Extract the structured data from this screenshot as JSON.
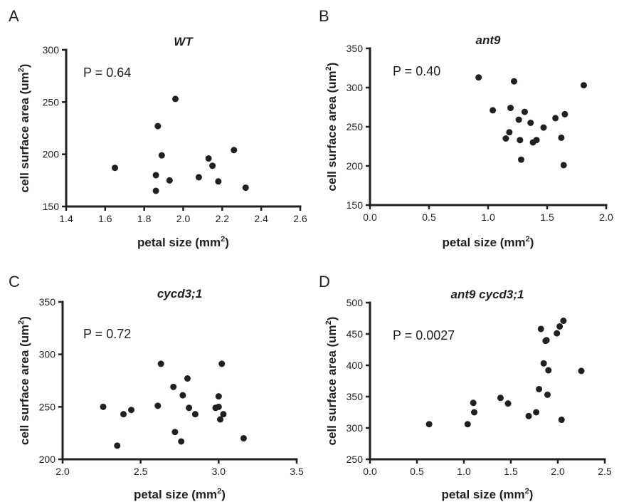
{
  "chart_data": [
    {
      "type": "scatter",
      "panel": "A",
      "title": "WT",
      "annotation": "P = 0.64",
      "xlabel": "petal size (mm",
      "xlabel_sup": "2",
      "xlabel_end": ")",
      "ylabel": "cell surface area (um",
      "ylabel_sup": "2",
      "ylabel_end": ")",
      "xlim": [
        1.4,
        2.6
      ],
      "ylim": [
        150,
        300
      ],
      "xticks": [
        1.4,
        1.6,
        1.8,
        2.0,
        2.2,
        2.4,
        2.6
      ],
      "xtick_labels": [
        "1.4",
        "1.6",
        "1.8",
        "2.0",
        "2.2",
        "2.4",
        "2.6"
      ],
      "yticks": [
        150,
        200,
        250,
        300
      ],
      "ytick_labels": [
        "150",
        "200",
        "250",
        "300"
      ],
      "points": [
        [
          1.65,
          187
        ],
        [
          1.86,
          165
        ],
        [
          1.86,
          180
        ],
        [
          1.87,
          227
        ],
        [
          1.89,
          199
        ],
        [
          1.93,
          175
        ],
        [
          1.96,
          253
        ],
        [
          2.08,
          178
        ],
        [
          2.13,
          196
        ],
        [
          2.15,
          189
        ],
        [
          2.18,
          174
        ],
        [
          2.26,
          204
        ],
        [
          2.32,
          168
        ]
      ]
    },
    {
      "type": "scatter",
      "panel": "B",
      "title": "ant9",
      "annotation": "P = 0.40",
      "xlabel": "petal size (mm",
      "xlabel_sup": "2",
      "xlabel_end": ")",
      "ylabel": "cell surface area (um",
      "ylabel_sup": "2",
      "ylabel_end": ")",
      "xlim": [
        0.0,
        2.0
      ],
      "ylim": [
        150,
        350
      ],
      "xticks": [
        0.0,
        0.5,
        1.0,
        1.5,
        2.0
      ],
      "xtick_labels": [
        "0.0",
        "0.5",
        "1.0",
        "1.5",
        "2.0"
      ],
      "yticks": [
        150,
        200,
        250,
        300,
        350
      ],
      "ytick_labels": [
        "150",
        "200",
        "250",
        "300",
        "350"
      ],
      "points": [
        [
          0.92,
          313
        ],
        [
          1.04,
          271
        ],
        [
          1.15,
          235
        ],
        [
          1.18,
          243
        ],
        [
          1.19,
          274
        ],
        [
          1.22,
          308
        ],
        [
          1.26,
          259
        ],
        [
          1.27,
          233
        ],
        [
          1.28,
          208
        ],
        [
          1.31,
          269
        ],
        [
          1.36,
          255
        ],
        [
          1.38,
          230
        ],
        [
          1.41,
          233
        ],
        [
          1.47,
          249
        ],
        [
          1.57,
          261
        ],
        [
          1.62,
          236
        ],
        [
          1.64,
          201
        ],
        [
          1.65,
          266
        ],
        [
          1.81,
          303
        ]
      ]
    },
    {
      "type": "scatter",
      "panel": "C",
      "title": "cycd3;1",
      "annotation": "P = 0.72",
      "xlabel": "petal size (mm",
      "xlabel_sup": "2",
      "xlabel_end": ")",
      "ylabel": "cell surface area (um",
      "ylabel_sup": "2",
      "ylabel_end": ")",
      "xlim": [
        2.0,
        3.5
      ],
      "ylim": [
        200,
        350
      ],
      "xticks": [
        2.0,
        2.5,
        3.0,
        3.5
      ],
      "xtick_labels": [
        "2.0",
        "2.5",
        "3.0",
        "3.5"
      ],
      "yticks": [
        200,
        250,
        300,
        350
      ],
      "ytick_labels": [
        "200",
        "250",
        "300",
        "350"
      ],
      "points": [
        [
          2.26,
          250
        ],
        [
          2.35,
          213
        ],
        [
          2.39,
          243
        ],
        [
          2.44,
          247
        ],
        [
          2.61,
          251
        ],
        [
          2.63,
          291
        ],
        [
          2.71,
          269
        ],
        [
          2.72,
          226
        ],
        [
          2.76,
          217
        ],
        [
          2.77,
          261
        ],
        [
          2.8,
          277
        ],
        [
          2.81,
          249
        ],
        [
          2.85,
          243
        ],
        [
          2.98,
          249
        ],
        [
          3.0,
          260
        ],
        [
          3.0,
          250
        ],
        [
          3.01,
          238
        ],
        [
          3.02,
          291
        ],
        [
          3.03,
          243
        ],
        [
          3.16,
          220
        ]
      ]
    },
    {
      "type": "scatter",
      "panel": "D",
      "title": "ant9 cycd3;1",
      "annotation": "P = 0.0027",
      "xlabel": "petal size (mm",
      "xlabel_sup": "2",
      "xlabel_end": ")",
      "ylabel": "cell surface area (um",
      "ylabel_sup": "2",
      "ylabel_end": ")",
      "xlim": [
        0.0,
        2.5
      ],
      "ylim": [
        250,
        500
      ],
      "xticks": [
        0.0,
        0.5,
        1.0,
        1.5,
        2.0,
        2.5
      ],
      "xtick_labels": [
        "0.0",
        "0.5",
        "1.0",
        "1.5",
        "2.0",
        "2.5"
      ],
      "yticks": [
        250,
        300,
        350,
        400,
        450,
        500
      ],
      "ytick_labels": [
        "250",
        "300",
        "350",
        "400",
        "450",
        "500"
      ],
      "points": [
        [
          0.63,
          306
        ],
        [
          1.04,
          306
        ],
        [
          1.1,
          340
        ],
        [
          1.11,
          325
        ],
        [
          1.39,
          348
        ],
        [
          1.47,
          339
        ],
        [
          1.69,
          319
        ],
        [
          1.77,
          325
        ],
        [
          1.8,
          362
        ],
        [
          1.82,
          458
        ],
        [
          1.85,
          403
        ],
        [
          1.87,
          439
        ],
        [
          1.88,
          440
        ],
        [
          1.89,
          353
        ],
        [
          1.9,
          392
        ],
        [
          1.99,
          451
        ],
        [
          2.02,
          462
        ],
        [
          2.04,
          313
        ],
        [
          2.06,
          471
        ],
        [
          2.25,
          391
        ]
      ]
    }
  ]
}
